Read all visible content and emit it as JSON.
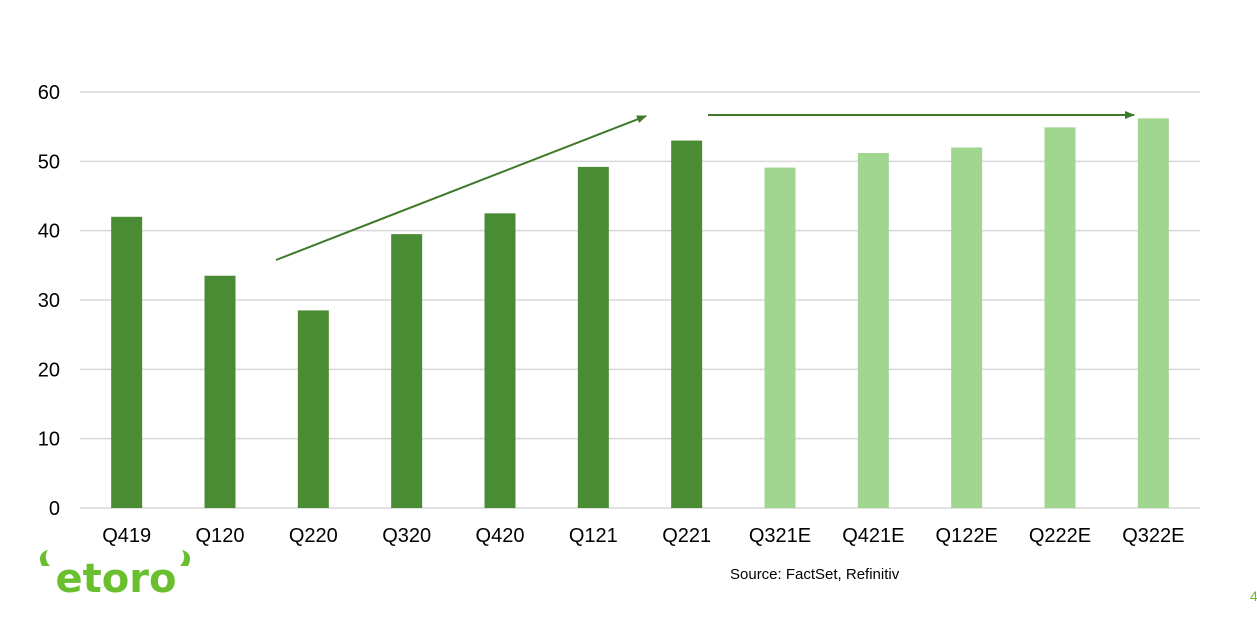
{
  "brand": {
    "logo_text": "etoro",
    "logo_color": "#6abf2f"
  },
  "source": "Source: FactSet, Refinitiv",
  "page_number": "4",
  "colors": {
    "actual": "#4a8c34",
    "estimate": "#a0d68f",
    "arrow": "#3f7a2a",
    "grid": "#d9d9d9"
  },
  "chart_data": {
    "type": "bar",
    "categories": [
      "Q419",
      "Q120",
      "Q220",
      "Q320",
      "Q420",
      "Q121",
      "Q221",
      "Q321E",
      "Q421E",
      "Q122E",
      "Q222E",
      "Q322E"
    ],
    "values": [
      42,
      33.5,
      28.5,
      39.5,
      42.5,
      49.2,
      53,
      49.1,
      51.2,
      52,
      54.9,
      56.2
    ],
    "estimated": [
      false,
      false,
      false,
      false,
      false,
      false,
      false,
      true,
      true,
      true,
      true,
      true
    ],
    "ylim": [
      0,
      60
    ],
    "yticks": [
      0,
      10,
      20,
      30,
      40,
      50,
      60
    ],
    "grid": true,
    "title": "",
    "xlabel": "",
    "ylabel": ""
  }
}
